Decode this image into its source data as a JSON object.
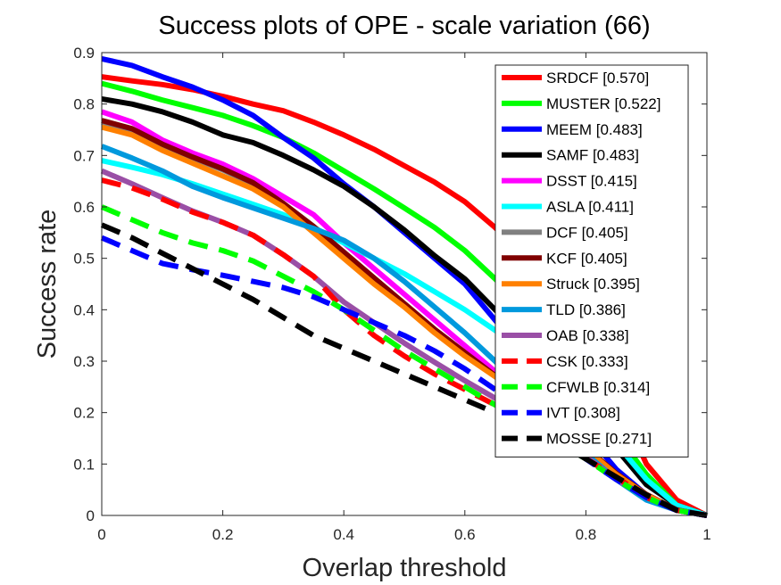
{
  "chart_data": {
    "type": "line",
    "title": "Success plots of OPE - scale variation (66)",
    "xlabel": "Overlap threshold",
    "ylabel": "Success rate",
    "xlim": [
      0,
      1
    ],
    "ylim": [
      0,
      0.9
    ],
    "xticks": [
      0,
      0.2,
      0.4,
      0.6,
      0.8,
      1
    ],
    "xtick_labels": [
      "0",
      "0.2",
      "0.4",
      "0.6",
      "0.8",
      "1"
    ],
    "yticks": [
      0,
      0.1,
      0.2,
      0.3,
      0.4,
      0.5,
      0.6,
      0.7,
      0.8,
      0.9
    ],
    "ytick_labels": [
      "0",
      "0.1",
      "0.2",
      "0.3",
      "0.4",
      "0.5",
      "0.6",
      "0.7",
      "0.8",
      "0.9"
    ],
    "grid": false,
    "legend_position": "top-right",
    "x": [
      0,
      0.05,
      0.1,
      0.15,
      0.2,
      0.25,
      0.3,
      0.35,
      0.4,
      0.45,
      0.5,
      0.55,
      0.6,
      0.65,
      0.7,
      0.75,
      0.8,
      0.85,
      0.9,
      0.95,
      1
    ],
    "series": [
      {
        "name": "SRDCF [0.570]",
        "color": "#ff0000",
        "dash": "solid",
        "values": [
          0.853,
          0.845,
          0.838,
          0.828,
          0.815,
          0.8,
          0.787,
          0.765,
          0.74,
          0.712,
          0.68,
          0.648,
          0.61,
          0.56,
          0.5,
          0.43,
          0.34,
          0.23,
          0.1,
          0.03,
          0.0
        ]
      },
      {
        "name": "MUSTER [0.522]",
        "color": "#00ff00",
        "dash": "solid",
        "values": [
          0.84,
          0.825,
          0.808,
          0.793,
          0.778,
          0.758,
          0.735,
          0.705,
          0.67,
          0.635,
          0.598,
          0.56,
          0.515,
          0.46,
          0.4,
          0.33,
          0.24,
          0.16,
          0.08,
          0.02,
          0.0
        ]
      },
      {
        "name": "MEEM [0.483]",
        "color": "#0000ff",
        "dash": "solid",
        "values": [
          0.888,
          0.875,
          0.853,
          0.833,
          0.808,
          0.778,
          0.735,
          0.695,
          0.645,
          0.6,
          0.55,
          0.5,
          0.45,
          0.38,
          0.31,
          0.23,
          0.16,
          0.09,
          0.04,
          0.01,
          0.0
        ]
      },
      {
        "name": "SAMF [0.483]",
        "color": "#000000",
        "dash": "solid",
        "values": [
          0.81,
          0.8,
          0.785,
          0.765,
          0.74,
          0.725,
          0.7,
          0.672,
          0.64,
          0.6,
          0.555,
          0.505,
          0.46,
          0.4,
          0.34,
          0.27,
          0.2,
          0.13,
          0.06,
          0.02,
          0.0
        ]
      },
      {
        "name": "DSST [0.415]",
        "color": "#ff00ff",
        "dash": "solid",
        "values": [
          0.785,
          0.765,
          0.73,
          0.705,
          0.683,
          0.655,
          0.62,
          0.585,
          0.53,
          0.48,
          0.43,
          0.38,
          0.33,
          0.28,
          0.23,
          0.18,
          0.13,
          0.08,
          0.04,
          0.01,
          0.0
        ]
      },
      {
        "name": "ASLA [0.411]",
        "color": "#00ffff",
        "dash": "solid",
        "values": [
          0.69,
          0.677,
          0.663,
          0.645,
          0.625,
          0.605,
          0.585,
          0.56,
          0.53,
          0.5,
          0.47,
          0.435,
          0.4,
          0.36,
          0.32,
          0.27,
          0.21,
          0.14,
          0.07,
          0.02,
          0.0
        ]
      },
      {
        "name": "DCF [0.405]",
        "color": "#808080",
        "dash": "solid",
        "values": [
          0.765,
          0.75,
          0.72,
          0.695,
          0.672,
          0.645,
          0.605,
          0.56,
          0.51,
          0.46,
          0.41,
          0.36,
          0.315,
          0.27,
          0.225,
          0.18,
          0.13,
          0.08,
          0.04,
          0.01,
          0.0
        ]
      },
      {
        "name": "KCF [0.405]",
        "color": "#800000",
        "dash": "solid",
        "values": [
          0.768,
          0.752,
          0.722,
          0.697,
          0.674,
          0.647,
          0.607,
          0.562,
          0.512,
          0.462,
          0.412,
          0.362,
          0.317,
          0.272,
          0.227,
          0.182,
          0.132,
          0.082,
          0.041,
          0.011,
          0.0
        ]
      },
      {
        "name": "Struck [0.395]",
        "color": "#ff8000",
        "dash": "solid",
        "values": [
          0.755,
          0.74,
          0.71,
          0.685,
          0.66,
          0.635,
          0.6,
          0.55,
          0.5,
          0.45,
          0.405,
          0.355,
          0.31,
          0.27,
          0.225,
          0.18,
          0.13,
          0.08,
          0.04,
          0.01,
          0.0
        ]
      },
      {
        "name": "TLD [0.386]",
        "color": "#0099dd",
        "dash": "solid",
        "values": [
          0.718,
          0.695,
          0.67,
          0.64,
          0.618,
          0.598,
          0.578,
          0.558,
          0.535,
          0.5,
          0.455,
          0.405,
          0.355,
          0.3,
          0.24,
          0.18,
          0.12,
          0.07,
          0.03,
          0.01,
          0.0
        ]
      },
      {
        "name": "OAB [0.338]",
        "color": "#9a4fa6",
        "dash": "solid",
        "values": [
          0.67,
          0.645,
          0.618,
          0.592,
          0.57,
          0.545,
          0.507,
          0.465,
          0.415,
          0.375,
          0.335,
          0.298,
          0.262,
          0.228,
          0.195,
          0.16,
          0.115,
          0.07,
          0.035,
          0.01,
          0.0
        ]
      },
      {
        "name": "CSK [0.333]",
        "color": "#ff0000",
        "dash": "dashed",
        "values": [
          0.652,
          0.637,
          0.615,
          0.59,
          0.57,
          0.545,
          0.507,
          0.465,
          0.4,
          0.35,
          0.31,
          0.275,
          0.245,
          0.215,
          0.18,
          0.145,
          0.11,
          0.075,
          0.035,
          0.01,
          0.0
        ]
      },
      {
        "name": "CFWLB [0.314]",
        "color": "#00ff00",
        "dash": "dashed",
        "values": [
          0.6,
          0.575,
          0.55,
          0.53,
          0.515,
          0.495,
          0.465,
          0.435,
          0.4,
          0.36,
          0.32,
          0.285,
          0.25,
          0.215,
          0.18,
          0.145,
          0.11,
          0.07,
          0.035,
          0.01,
          0.0
        ]
      },
      {
        "name": "IVT [0.308]",
        "color": "#0000ff",
        "dash": "dashed",
        "values": [
          0.54,
          0.515,
          0.49,
          0.478,
          0.467,
          0.455,
          0.443,
          0.425,
          0.4,
          0.375,
          0.35,
          0.32,
          0.285,
          0.245,
          0.2,
          0.155,
          0.11,
          0.07,
          0.035,
          0.01,
          0.0
        ]
      },
      {
        "name": "MOSSE [0.271]",
        "color": "#000000",
        "dash": "dashed",
        "values": [
          0.565,
          0.54,
          0.51,
          0.48,
          0.45,
          0.42,
          0.385,
          0.35,
          0.325,
          0.3,
          0.275,
          0.25,
          0.225,
          0.2,
          0.175,
          0.145,
          0.11,
          0.075,
          0.04,
          0.01,
          0.0
        ]
      }
    ]
  }
}
